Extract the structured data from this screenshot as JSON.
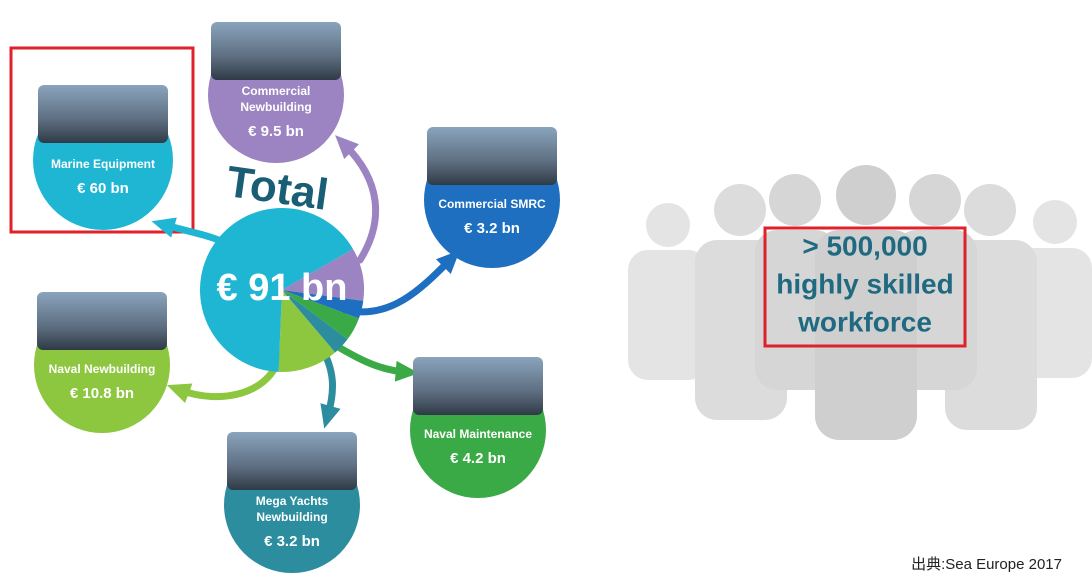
{
  "total": {
    "label": "Total",
    "value_label": "€ 91 bn"
  },
  "nodes": [
    {
      "label_lines": [
        "Commercial",
        "Newbuilding"
      ],
      "value_label": "€ 9.5 bn",
      "value": 9.5
    },
    {
      "label_lines": [
        "Commercial SMRC"
      ],
      "value_label": "€ 3.2 bn",
      "value": 3.2
    },
    {
      "label_lines": [
        "Naval Maintenance"
      ],
      "value_label": "€ 4.2 bn",
      "value": 4.2
    },
    {
      "label_lines": [
        "Mega Yachts",
        "Newbuilding"
      ],
      "value_label": "€ 3.2 bn",
      "value": 3.2
    },
    {
      "label_lines": [
        "Naval Newbuilding"
      ],
      "value_label": "€ 10.8 bn",
      "value": 10.8
    },
    {
      "label_lines": [
        "Marine Equipment"
      ],
      "value_label": "€ 60 bn",
      "value": 60
    }
  ],
  "workforce": {
    "lines": [
      "> 500,000",
      "highly skilled",
      "workforce"
    ]
  },
  "source": "出典:Sea Europe 2017"
}
